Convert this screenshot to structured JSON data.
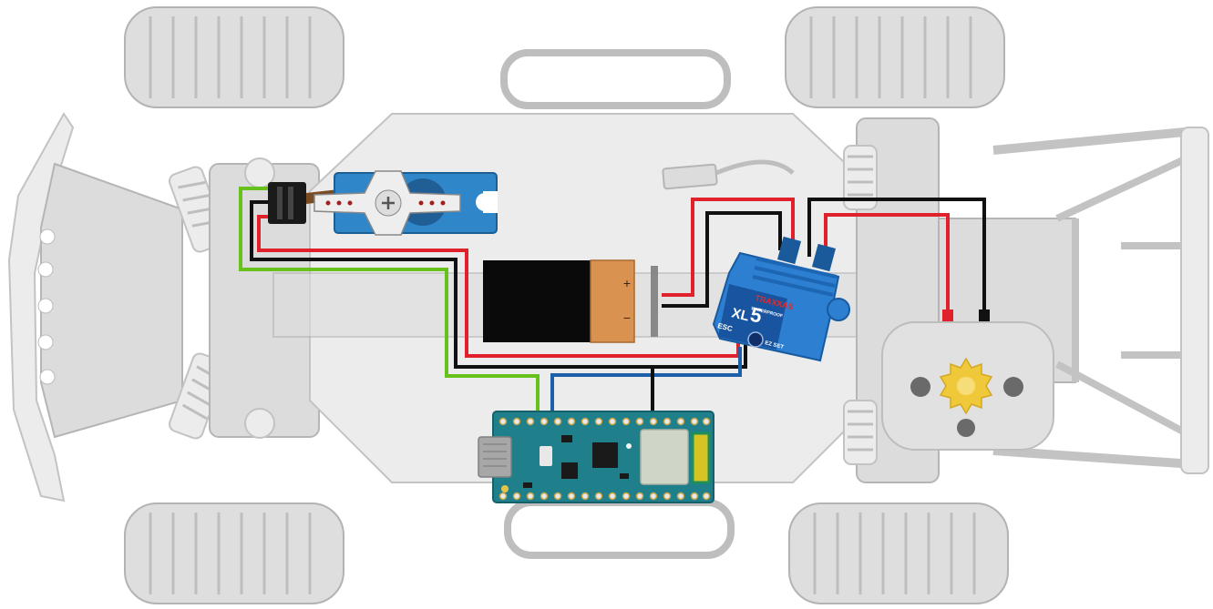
{
  "esc": {
    "brand": "TRAXXAS",
    "model": "XL",
    "model_number": "5",
    "subtitle": "WATERPROOF",
    "tag": "ESC",
    "button_label": "EZ SET"
  },
  "battery": {
    "positive_mark": "+",
    "negative_mark": "−"
  },
  "colors": {
    "wire_red": "#e0202a",
    "wire_black": "#111111",
    "wire_green": "#66c21a",
    "wire_blue": "#1d5fa8",
    "servo_blue": "#2f86c9",
    "board_teal": "#1f7f8a",
    "esc_blue": "#2d7fd1",
    "battery_orange": "#d9924f"
  }
}
